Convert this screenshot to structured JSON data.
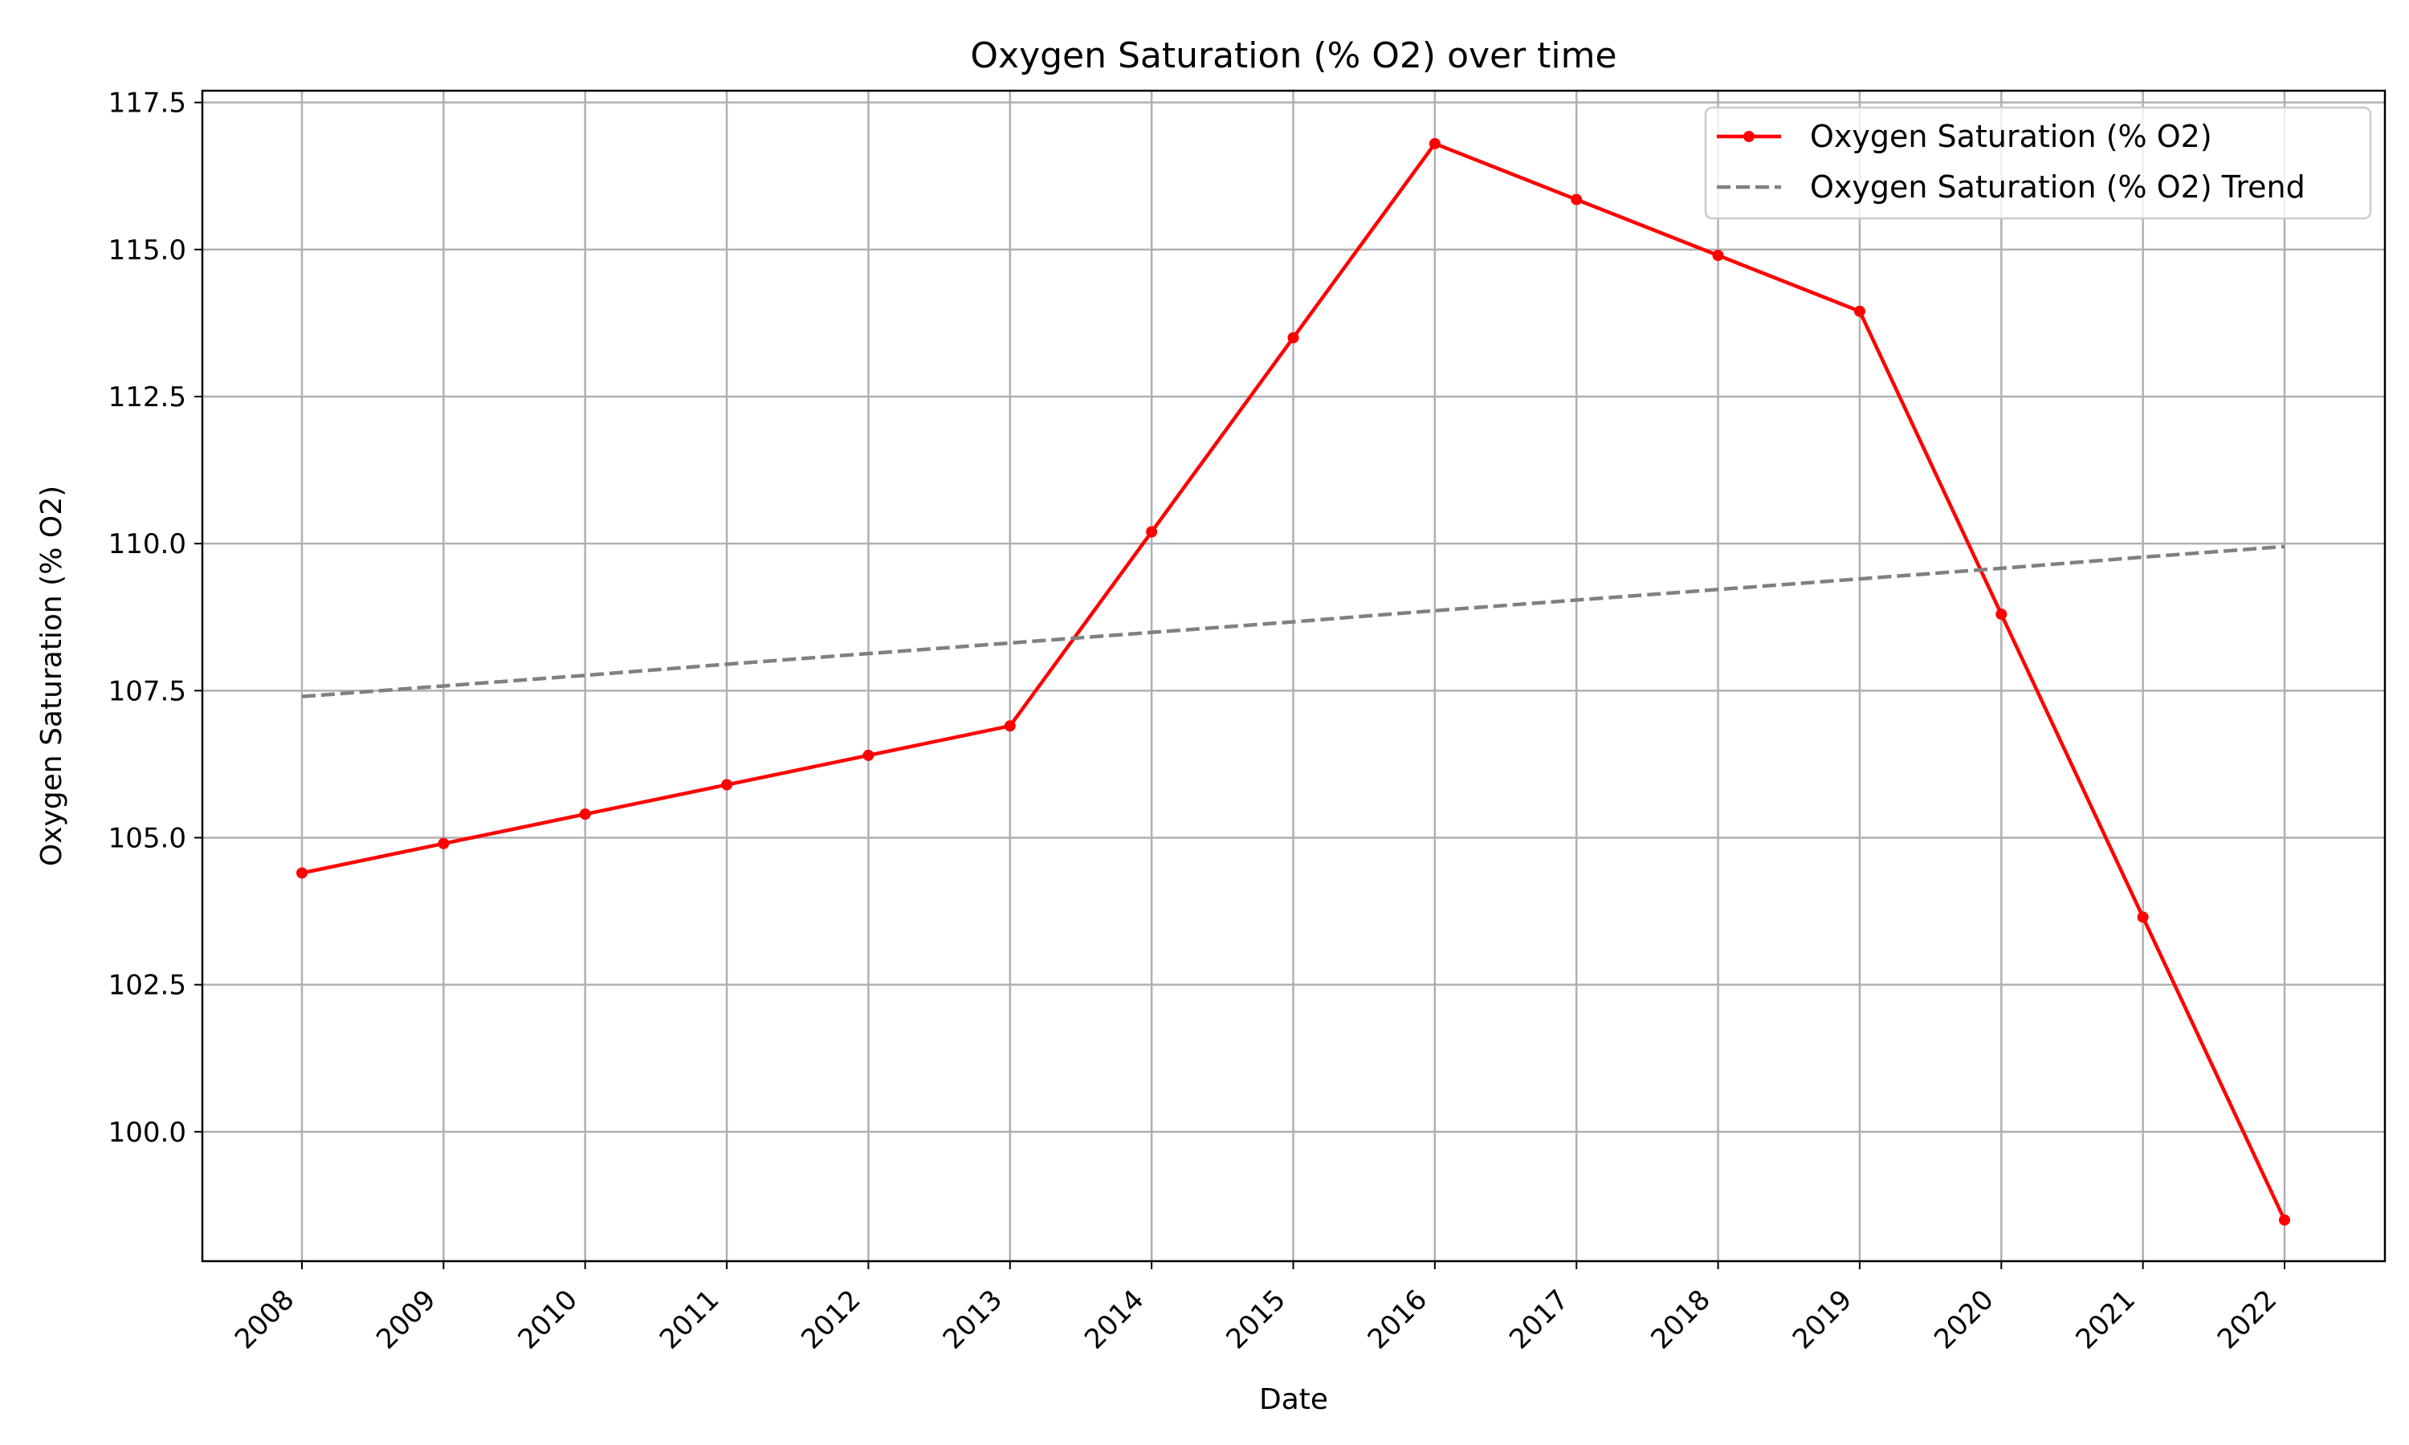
{
  "chart_data": {
    "type": "line",
    "title": "Oxygen Saturation (% O2) over time",
    "xlabel": "Date",
    "ylabel": "Oxygen Saturation (% O2)",
    "x": [
      "2008",
      "2009",
      "2010",
      "2011",
      "2012",
      "2013",
      "2014",
      "2015",
      "2016",
      "2017",
      "2018",
      "2019",
      "2020",
      "2021",
      "2022"
    ],
    "yticks": [
      "100.0",
      "102.5",
      "105.0",
      "107.5",
      "110.0",
      "112.5",
      "115.0",
      "117.5"
    ],
    "ylim": [
      97.8,
      117.7
    ],
    "grid": true,
    "legend_position": "top-right",
    "series": [
      {
        "name": "Oxygen Saturation (% O2)",
        "color": "#ff0000",
        "style": "solid-with-markers",
        "values": [
          104.4,
          104.9,
          105.4,
          105.9,
          106.4,
          106.9,
          110.2,
          113.5,
          116.8,
          115.85,
          114.9,
          113.95,
          108.8,
          103.65,
          98.5
        ]
      },
      {
        "name": "Oxygen Saturation (% O2) Trend",
        "color": "#808080",
        "style": "dashed",
        "values": [
          107.4,
          107.58,
          107.76,
          107.95,
          108.13,
          108.31,
          108.49,
          108.67,
          108.86,
          109.04,
          109.22,
          109.4,
          109.58,
          109.77,
          109.95
        ]
      }
    ]
  }
}
